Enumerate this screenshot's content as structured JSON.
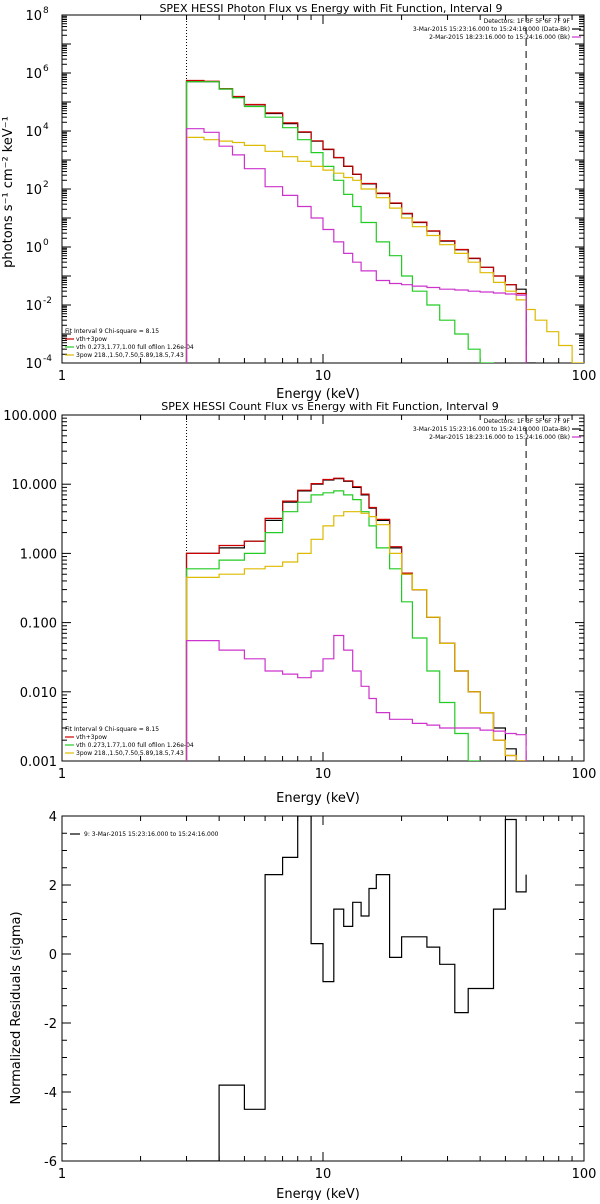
{
  "chart_data": [
    {
      "type": "line",
      "title": "SPEX HESSI Photon Flux vs Energy with Fit Function, Interval 9",
      "xlabel": "Energy (keV)",
      "ylabel": "photons s⁻¹ cm⁻² keV⁻¹",
      "x_scale": "log",
      "y_scale": "log",
      "xlim": [
        1,
        100
      ],
      "ylim": [
        0.0001,
        100000000
      ],
      "x_ticks": [
        {
          "v": 1,
          "label": "1"
        },
        {
          "v": 10,
          "label": "10"
        },
        {
          "v": 100,
          "label": "100"
        }
      ],
      "y_ticks": [
        {
          "v": 0.0001,
          "base": "10",
          "exp": "-4"
        },
        {
          "v": 0.01,
          "base": "10",
          "exp": "-2"
        },
        {
          "v": 1,
          "base": "10",
          "exp": "0"
        },
        {
          "v": 100,
          "base": "10",
          "exp": "2"
        },
        {
          "v": 10000,
          "base": "10",
          "exp": "4"
        },
        {
          "v": 1000000,
          "base": "10",
          "exp": "6"
        },
        {
          "v": 100000000,
          "base": "10",
          "exp": "8"
        }
      ],
      "vlines": [
        {
          "x": 3,
          "style": "dotted"
        },
        {
          "x": 60,
          "style": "dashed"
        }
      ],
      "legend_right": [
        {
          "text": "Detectors: 1F 3F 5F 6F 7F 9F",
          "color": ""
        },
        {
          "text": "3-Mar-2015 15:23:16.000 to 15:24:16.000 (Data-Bk)",
          "color": "#000000"
        },
        {
          "text": "2-Mar-2015 18:23:16.000 to 15:24:16.000 (Bk)",
          "color": "#cc33cc"
        }
      ],
      "legend_left": [
        {
          "text": "Fit Interval 9   Chi-square = 8.15",
          "color": ""
        },
        {
          "text": "vth+3pow",
          "color": "#cc0000"
        },
        {
          "text": "vth 0.273,1.77,1.00  full ofilon 1.26e-04",
          "color": "#22cc22"
        },
        {
          "text": "3pow 218.,1.50,7.50,5.89,18.5,7.43",
          "color": "#ddbb00"
        }
      ],
      "edges": [
        3,
        3.5,
        4,
        4.5,
        5,
        6,
        7,
        8,
        9,
        10,
        11,
        12,
        13,
        14,
        16,
        18,
        20,
        22,
        25,
        28,
        32,
        36,
        40,
        45,
        50,
        55,
        60,
        65,
        72,
        80,
        90,
        100
      ],
      "series": [
        {
          "key": "data_bk",
          "color": "#000000",
          "values": [
            500000,
            500000,
            280000,
            150000,
            80000,
            40000,
            18000,
            9000,
            4500,
            2300,
            1200,
            600,
            320,
            150,
            70,
            32,
            14,
            7,
            3.5,
            1.6,
            0.8,
            0.4,
            0.2,
            0.1,
            0.05,
            0.035,
            0.0001,
            null,
            null,
            null,
            null
          ]
        },
        {
          "key": "fit_total",
          "color": "#cc0000",
          "values": [
            550000,
            520000,
            290000,
            155000,
            82000,
            42000,
            19000,
            9300,
            4600,
            2350,
            1220,
            610,
            325,
            155,
            72,
            33,
            14.5,
            7.2,
            3.6,
            1.65,
            0.82,
            0.41,
            0.2,
            0.1,
            0.05,
            0.025,
            null,
            null,
            null,
            null,
            null
          ]
        },
        {
          "key": "fit_vth",
          "color": "#22cc22",
          "values": [
            500000,
            500000,
            280000,
            140000,
            70000,
            30000,
            13000,
            5000,
            1800,
            600,
            200,
            65,
            25,
            7,
            1.5,
            0.5,
            0.1,
            0.03,
            0.01,
            0.003,
            0.001,
            0.0003,
            0.0001,
            null,
            null,
            null,
            null,
            null,
            null,
            null,
            null
          ]
        },
        {
          "key": "fit_pow",
          "color": "#ddbb00",
          "values": [
            6000,
            5000,
            4500,
            4000,
            3200,
            2000,
            1300,
            900,
            600,
            450,
            350,
            250,
            200,
            100,
            50,
            22,
            10,
            5,
            2.5,
            1.2,
            0.6,
            0.3,
            0.13,
            0.06,
            0.03,
            0.015,
            0.007,
            0.003,
            0.0012,
            0.0004,
            0.0001
          ]
        },
        {
          "key": "background",
          "color": "#cc33cc",
          "values": [
            12000,
            9000,
            3000,
            1500,
            500,
            120,
            60,
            25,
            10,
            4,
            1.5,
            0.6,
            0.3,
            0.15,
            0.07,
            0.055,
            0.05,
            0.045,
            0.04,
            0.035,
            0.033,
            0.03,
            0.028,
            0.026,
            0.024,
            0.022,
            null,
            null,
            null,
            null,
            null
          ]
        }
      ]
    },
    {
      "type": "line",
      "title": "SPEX HESSI Count Flux vs Energy with Fit Function, Interval 9",
      "xlabel": "Energy (keV)",
      "ylabel": "",
      "x_scale": "log",
      "y_scale": "log",
      "xlim": [
        1,
        100
      ],
      "ylim": [
        0.001,
        100
      ],
      "x_ticks": [
        {
          "v": 1,
          "label": "1"
        },
        {
          "v": 10,
          "label": "10"
        },
        {
          "v": 100,
          "label": "100"
        }
      ],
      "y_ticks": [
        {
          "v": 0.001,
          "label": "0.001"
        },
        {
          "v": 0.01,
          "label": "0.010"
        },
        {
          "v": 0.1,
          "label": "0.100"
        },
        {
          "v": 1,
          "label": "1.000"
        },
        {
          "v": 10,
          "label": "10.000"
        },
        {
          "v": 100,
          "label": "100.000"
        }
      ],
      "vlines": [
        {
          "x": 3,
          "style": "dotted"
        },
        {
          "x": 60,
          "style": "dashed"
        }
      ],
      "legend_right": [
        {
          "text": "Detectors: 1F 3F 5F 6F 7F 9F",
          "color": ""
        },
        {
          "text": "3-Mar-2015 15:23:16.000 to 15:24:16.000 (Data-Bk)",
          "color": "#000000"
        },
        {
          "text": "2-Mar-2015 18:23:16.000 to 15:24:16.000 (Bk)",
          "color": "#cc33cc"
        }
      ],
      "legend_left": [
        {
          "text": "Fit Interval 9   Chi-square = 8.15",
          "color": ""
        },
        {
          "text": "vth+3pow",
          "color": "#cc0000"
        },
        {
          "text": "vth 0.273,1.77,1.00  full ofilon 1.26e-04",
          "color": "#22cc22"
        },
        {
          "text": "3pow 218.,1.50,7.50,5.89,18.5,7.43",
          "color": "#ddbb00"
        }
      ],
      "edges": [
        3,
        4,
        5,
        6,
        7,
        8,
        9,
        10,
        11,
        12,
        13,
        14,
        15,
        16,
        18,
        20,
        22,
        25,
        28,
        32,
        36,
        40,
        45,
        50,
        55,
        60
      ],
      "series": [
        {
          "key": "data_bk",
          "color": "#000000",
          "values": [
            1.0,
            1.2,
            1.5,
            3.0,
            5.5,
            8.0,
            10.0,
            11.5,
            12.0,
            11.0,
            9.0,
            7.0,
            4.5,
            3.0,
            1.2,
            0.5,
            0.3,
            0.12,
            0.05,
            0.02,
            0.01,
            0.005,
            0.003,
            0.0015,
            0.001
          ]
        },
        {
          "key": "fit_total",
          "color": "#cc0000",
          "values": [
            1.0,
            1.3,
            1.5,
            3.2,
            5.7,
            8.2,
            10.2,
            11.7,
            12.2,
            11.2,
            9.2,
            7.2,
            4.6,
            3.1,
            1.25,
            0.52,
            0.3,
            0.12,
            0.05,
            0.02,
            0.01,
            0.005,
            0.002,
            0.0012,
            0.001
          ]
        },
        {
          "key": "fit_vth",
          "color": "#22cc22",
          "values": [
            0.6,
            0.8,
            1.0,
            2.0,
            4.0,
            5.5,
            7.0,
            7.5,
            8.0,
            7.0,
            6.0,
            4.0,
            2.5,
            1.2,
            0.6,
            0.2,
            0.06,
            0.02,
            0.007,
            0.0025,
            0.001,
            null,
            null,
            null,
            null
          ]
        },
        {
          "key": "fit_pow",
          "color": "#ddbb00",
          "values": [
            0.45,
            0.5,
            0.6,
            0.65,
            0.75,
            1.0,
            1.6,
            2.5,
            3.5,
            4.0,
            4.0,
            3.8,
            3.4,
            2.6,
            1.0,
            0.5,
            0.3,
            0.12,
            0.05,
            0.02,
            0.01,
            0.005,
            0.002,
            0.0012,
            0.001
          ]
        },
        {
          "key": "background",
          "color": "#cc33cc",
          "values": [
            0.055,
            0.04,
            0.03,
            0.02,
            0.018,
            0.016,
            0.02,
            0.03,
            0.065,
            0.04,
            0.02,
            0.012,
            0.008,
            0.005,
            0.004,
            0.004,
            0.0035,
            0.0033,
            0.003,
            0.003,
            0.003,
            0.0028,
            0.0027,
            0.0025,
            0.0024
          ]
        }
      ]
    },
    {
      "type": "line",
      "title": "",
      "xlabel": "Energy (keV)",
      "ylabel": "Normalized Residuals (sigma)",
      "x_scale": "log",
      "y_scale": "linear",
      "xlim": [
        1,
        100
      ],
      "ylim": [
        -6,
        4
      ],
      "x_ticks": [
        {
          "v": 1,
          "label": "1"
        },
        {
          "v": 10,
          "label": "10"
        },
        {
          "v": 100,
          "label": "100"
        }
      ],
      "y_ticks": [
        {
          "v": -6,
          "label": "-6"
        },
        {
          "v": -4,
          "label": "-4"
        },
        {
          "v": -2,
          "label": "-2"
        },
        {
          "v": 0,
          "label": "0"
        },
        {
          "v": 2,
          "label": "2"
        },
        {
          "v": 4,
          "label": "4"
        }
      ],
      "vlines": [],
      "legend_right": [],
      "legend_left": [],
      "legend_top_left": {
        "text": "9:  3-Mar-2015 15:23:16.000 to 15:24:16.000",
        "color": "#000000"
      },
      "edges": [
        3,
        4,
        5,
        6,
        7,
        8,
        9,
        10,
        11,
        12,
        13,
        14,
        15,
        16,
        18,
        20,
        22,
        25,
        28,
        32,
        36,
        40,
        45,
        50,
        55,
        60
      ],
      "series": [
        {
          "key": "residuals",
          "color": "#000000",
          "values": [
            -6.0,
            -3.8,
            -4.5,
            2.3,
            2.8,
            4.0,
            0.3,
            -0.8,
            1.3,
            0.8,
            1.5,
            1.1,
            1.9,
            2.3,
            -0.1,
            0.5,
            0.5,
            0.2,
            -0.3,
            -1.7,
            -1.0,
            -1.0,
            1.3,
            3.9,
            1.8,
            2.3
          ]
        }
      ]
    }
  ]
}
